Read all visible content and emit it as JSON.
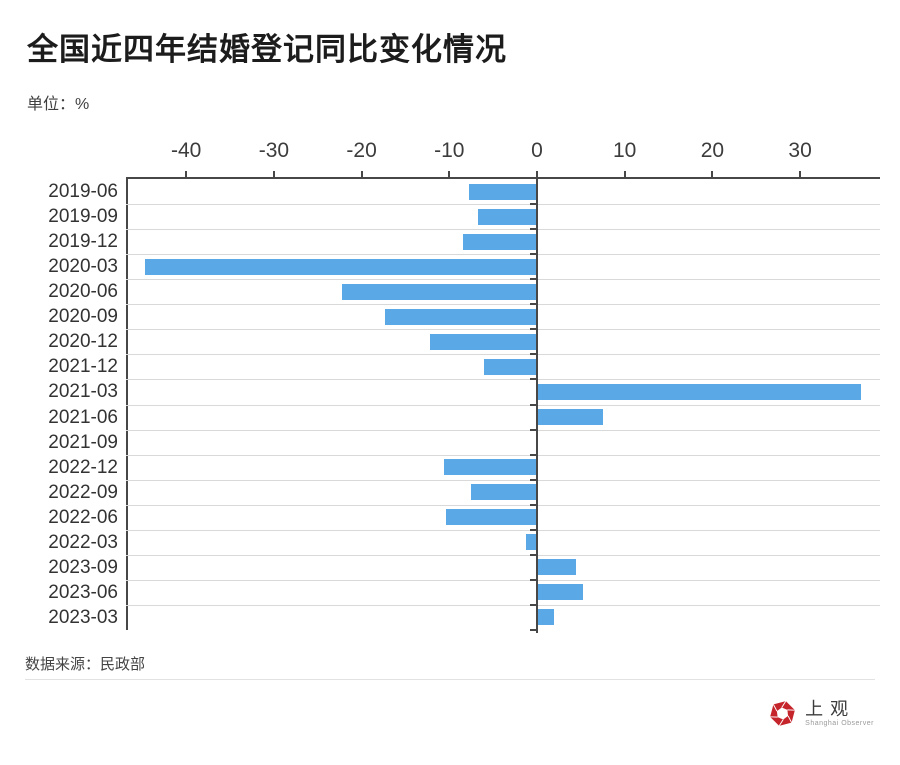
{
  "header": {
    "title": "全国近四年结婚登记同比变化情况",
    "unit_label": "单位：%"
  },
  "chart_data": {
    "type": "bar",
    "orientation": "horizontal",
    "title": "全国近四年结婚登记同比变化情况",
    "unit": "%",
    "categories": [
      "2019-06",
      "2019-09",
      "2019-12",
      "2020-03",
      "2020-06",
      "2020-09",
      "2020-12",
      "2021-12",
      "2021-03",
      "2021-06",
      "2021-09",
      "2022-12",
      "2022-09",
      "2022-06",
      "2022-03",
      "2023-09",
      "2023-06",
      "2023-03"
    ],
    "values": [
      -7.8,
      -6.7,
      -8.4,
      -44.7,
      -22.2,
      -17.3,
      -12.2,
      -6.1,
      36.9,
      7.5,
      -0.1,
      -10.6,
      -7.5,
      -10.4,
      -1.2,
      4.5,
      5.3,
      1.9
    ],
    "x_ticks": [
      -40,
      -30,
      -20,
      -10,
      0,
      10,
      20,
      30
    ],
    "xlim": [
      -46.9,
      39.1
    ],
    "grid": true,
    "legend": "none",
    "axis_position": "top",
    "bar_color": "#5AA9E6",
    "axis_color": "#474747",
    "grid_color": "#d9d9d9"
  },
  "footer": {
    "source_label": "数据来源：民政部"
  },
  "logo": {
    "name_cn": "上观",
    "name_en": "Shanghai Observer",
    "brand_color": "#C5242B"
  }
}
